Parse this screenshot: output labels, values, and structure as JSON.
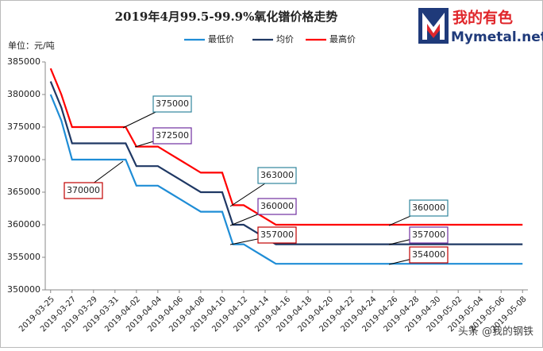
{
  "chart_data": {
    "type": "line",
    "title": "2019年4月99.5-99.9%氧化镨价格走势",
    "y_label": "单位：元/吨",
    "logo_text": "我的有色",
    "logo_subtext": "Mymetal.net",
    "watermark": "头条 @我的钢铁",
    "categories": [
      "2019-03-25",
      null,
      "2019-03-27",
      null,
      "2019-03-29",
      null,
      "2019-03-31",
      null,
      "2019-04-02",
      null,
      "2019-04-04",
      null,
      "2019-04-06",
      null,
      "2019-04-08",
      null,
      "2019-04-10",
      null,
      "2019-04-12",
      null,
      "2019-04-14",
      null,
      "2019-04-16",
      null,
      "2019-04-18",
      null,
      "2019-04-20",
      null,
      "2019-04-22",
      null,
      "2019-04-24",
      null,
      "2019-04-26",
      null,
      "2019-04-28",
      null,
      "2019-04-30",
      null,
      "2019-05-02",
      null,
      "2019-05-04",
      null,
      "2019-05-06",
      null,
      "2019-05-08"
    ],
    "series": [
      {
        "name": "最低价",
        "color": "#1f8dd6",
        "values": [
          380000,
          376000,
          370000,
          370000,
          370000,
          370000,
          370000,
          370000,
          366000,
          366000,
          366000,
          365000,
          364000,
          363000,
          362000,
          362000,
          362000,
          357000,
          357000,
          356000,
          355000,
          354000,
          354000,
          354000,
          354000,
          354000,
          354000,
          354000,
          354000,
          354000,
          354000,
          354000,
          354000,
          354000,
          354000,
          354000,
          354000,
          354000,
          354000,
          354000,
          354000,
          354000,
          354000,
          354000,
          354000
        ]
      },
      {
        "name": "均价",
        "color": "#1f3864",
        "values": [
          382000,
          378000,
          372500,
          372500,
          372500,
          372500,
          372500,
          372500,
          369000,
          369000,
          369000,
          368000,
          367000,
          366000,
          365000,
          365000,
          365000,
          360000,
          360000,
          359000,
          358000,
          357000,
          357000,
          357000,
          357000,
          357000,
          357000,
          357000,
          357000,
          357000,
          357000,
          357000,
          357000,
          357000,
          357000,
          357000,
          357000,
          357000,
          357000,
          357000,
          357000,
          357000,
          357000,
          357000,
          357000
        ]
      },
      {
        "name": "最高价",
        "color": "#ff0000",
        "values": [
          384000,
          380000,
          375000,
          375000,
          375000,
          375000,
          375000,
          375000,
          372000,
          372000,
          372000,
          371000,
          370000,
          369000,
          368000,
          368000,
          368000,
          363000,
          363000,
          362000,
          361000,
          360000,
          360000,
          360000,
          360000,
          360000,
          360000,
          360000,
          360000,
          360000,
          360000,
          360000,
          360000,
          360000,
          360000,
          360000,
          360000,
          360000,
          360000,
          360000,
          360000,
          360000,
          360000,
          360000,
          360000
        ]
      }
    ],
    "annotations": [
      {
        "text": "375000",
        "color": "#31859c"
      },
      {
        "text": "372500",
        "color": "#7030a0"
      },
      {
        "text": "370000",
        "color": "#c00000"
      },
      {
        "text": "363000",
        "color": "#31859c"
      },
      {
        "text": "360000",
        "color": "#7030a0"
      },
      {
        "text": "357000",
        "color": "#c00000"
      },
      {
        "text": "360000",
        "color": "#31859c"
      },
      {
        "text": "357000",
        "color": "#7030a0"
      },
      {
        "text": "354000",
        "color": "#c00000"
      }
    ],
    "ylim": [
      350000,
      385000
    ],
    "yticks": [
      350000,
      355000,
      360000,
      365000,
      370000,
      375000,
      380000,
      385000
    ],
    "grid": false
  }
}
